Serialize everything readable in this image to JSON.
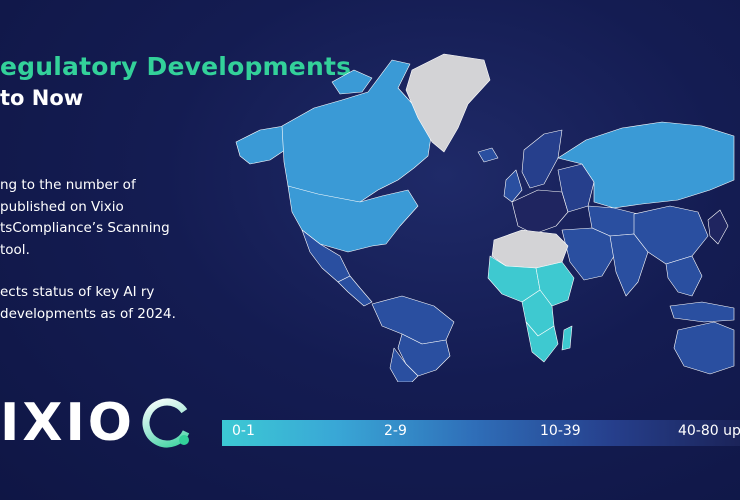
{
  "title": "egulatory Developments",
  "subtitle": "to Now",
  "description": [
    "ng to the number of published on Vixio tsCompliance’s Scanning tool.",
    "ects status of key AI ry developments as of 2024."
  ],
  "logo": {
    "text": "IXIO",
    "icon": "vixio-ring-logo"
  },
  "legend": {
    "labels": [
      "0-1",
      "2-9",
      "10-39",
      "40-80 up"
    ],
    "colors": {
      "0-1": "#3ec9d0",
      "2-9": "#3a9ad6",
      "10-39": "#2a4fa0",
      "40-80 up": "#1f2560",
      "no_data": "#d3d3d6"
    }
  },
  "colors": {
    "background": "#141c52",
    "title": "#33d19a",
    "border": "#ffffff"
  }
}
